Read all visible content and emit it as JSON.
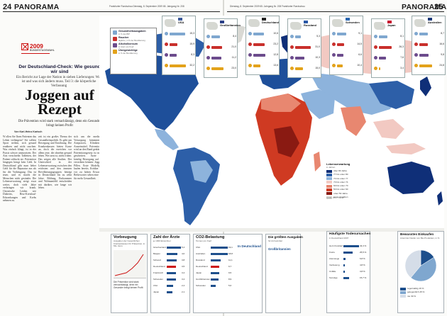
{
  "header": {
    "left_page": "24",
    "left_section": "PANORAMA",
    "left_dateline": "Frankfurter Rundschau   Dienstag, 8. September 2009   65. Jahrgang   Nr. 208",
    "right_page": "25",
    "right_section": "PANORAMA",
    "right_dateline": "Dienstag, 8. September 2009   65. Jahrgang   Nr. 208   Frankfurter Rundschau"
  },
  "logo": {
    "year": "2009",
    "sub": "BUNDESTAGSWAHL"
  },
  "article": {
    "kicker": "Der Deutschland-Check: Wie gesund wir sind",
    "subkicker": "Ein Bericht zur Lage der Nation in sieben Lieferungen: Was ist und was sich ändern muss. Teil 3: die körperliche Verfassung",
    "headline": "Joggen auf Rezept",
    "deck": "Die Prävention wird stark vernachlässigt, denn ein Gesunder bringt keinen Profit",
    "byline": "Von Karl-Heinz Karisch",
    "col1": "W ollen Sie Ihren Patienten das Leben verlängern? Sie sollten Sport treiben, sich gesund ernähren und nicht rauchen. Was einfach klingt, ist in der Praxis schwer umzusetzen. Der Arzt verschreibt Tabletten, der Patient schluckt sie. Prävention hingegen bringt kein Geld. In Deutschland gibt man lieber Geld für die Reparatur aus als für die Vorbeugung. Das ist teuer, und es macht die Menschen nicht gesünder. Die Lebenserwartung steigt zwar weiter, doch viele Jahre verbringen wir krank. Chronische Leiden wie Diabetes, Herz-Kreislauf-Erkrankungen und Krebs nehmen zu.",
    "col2": "zeit ist ein großes Thema der Gesundheitspolitik. Es geht um Bewegung und Ernährung. Die Krankenkassen bieten Kurse an, doch die erreichen vor allem jene, die ohnehin gesund leben. Wer arm ist, stirbt früher. Das zeigen alle Studien. Der Unterschied in der Lebenserwartung zwischen den reichsten und den ärmsten Bevölkerungsgruppen beträgt in Deutschland bis zu zehn Jahre. Bildung, Einkommen und Wohnumfeld entscheiden mit darüber, wie lange wir leben.",
    "col3": "sich um die medizinische Versorgung kümmern, um Arztpraxen, Kliniken und Arzneimittel. Prävention aber wird an den Rand gedrängt. Ein Präventionsgesetz ist mehrfach gescheitert. Ärzte sollen künftig Bewegung auf Rezept verordnen können: Joggen statt Pillen. Erste Modellprojekte laufen bereits. Kritiker warnen vor zu hohen Erwartungen, Befürworter sehen eine Chance für mehr Gesundheit."
  },
  "map": {
    "legend": [
      {
        "label": "Gesundheitsausgaben",
        "sub": "in % des BIP",
        "color": "#7fa7cf"
      },
      {
        "label": "Raucher",
        "sub": "tägliche, in % der Bevölkerung",
        "color": "#c9302c"
      },
      {
        "label": "Alkoholkonsum",
        "sub": "in Litern pro Kopf",
        "color": "#6c4b8c"
      },
      {
        "label": "Übergewichtige",
        "sub": "in % der Bevölkerung",
        "color": "#e3a21a"
      }
    ],
    "countries": [
      {
        "name": "USA",
        "flag": "#3c5a9a",
        "values": [
          "15,3",
          "15,9",
          "8,3",
          "32,2"
        ],
        "bars": [
          0.92,
          0.45,
          0.42,
          0.95
        ]
      },
      {
        "name": "Großbritannien",
        "flag": "#2a3f86",
        "values": [
          "8,4",
          "21,0",
          "11,2",
          "23,0"
        ],
        "bars": [
          0.5,
          0.62,
          0.6,
          0.7
        ]
      },
      {
        "name": "Deutschland",
        "flag": "#222222",
        "values": [
          "10,6",
          "23,2",
          "12,8",
          "13,6"
        ],
        "bars": [
          0.64,
          0.68,
          0.7,
          0.42
        ]
      },
      {
        "name": "Russland",
        "flag": "#2b58a6",
        "values": [
          "5,3",
          "31,0",
          "10,3",
          "15,0"
        ],
        "bars": [
          0.32,
          0.9,
          0.56,
          0.45
        ]
      },
      {
        "name": "Schweden",
        "flag": "#2a66b0",
        "values": [
          "9,1",
          "14,5",
          "6,6",
          "10,4"
        ],
        "bars": [
          0.55,
          0.42,
          0.36,
          0.32
        ]
      },
      {
        "name": "Japan",
        "flag": "#c8102e",
        "values": [
          "8,1",
          "26,3",
          "7,6",
          "3,4"
        ],
        "bars": [
          0.49,
          0.77,
          0.41,
          0.1
        ]
      },
      {
        "name": "Australien",
        "flag": "#1d3a7a",
        "values": [
          "8,7",
          "16,6",
          "9,8",
          "24,8"
        ],
        "bars": [
          0.52,
          0.48,
          0.53,
          0.75
        ]
      }
    ],
    "life_expectancy": {
      "title": "Lebenserwartung",
      "sub": "in Jahren",
      "classes": [
        {
          "label": "über 80 Jahre",
          "color": "#0f2f78"
        },
        {
          "label": "77 bis unter 80",
          "color": "#2d5fa8"
        },
        {
          "label": "74 bis unter 77",
          "color": "#8db3dc"
        },
        {
          "label": "70 bis unter 74",
          "color": "#f2c9c2"
        },
        {
          "label": "60 bis unter 70",
          "color": "#e88770"
        },
        {
          "label": "50 bis unter 60",
          "color": "#cf3a22"
        },
        {
          "label": "unter 50 Jahre",
          "color": "#8a1a12"
        },
        {
          "label": "keine Angaben",
          "color": "#d9d9d4"
        }
      ],
      "source": "Quelle: WHO, OECD"
    }
  },
  "boxes": {
    "vorbeugung": {
      "title": "Vorbeugung",
      "sub": "Ausgaben der Gesetzlichen Krankenkassen für Prävention, in Mio. Euro"
    },
    "aerzte": {
      "title": "Zahl der Ärzte",
      "sub": "je 1000 Einwohner",
      "rows": [
        {
          "label": "Griechenland",
          "value": "5,4"
        },
        {
          "label": "Belgien",
          "value": "4,0"
        },
        {
          "label": "Schweiz",
          "value": "3,8"
        },
        {
          "label": "Deutschland",
          "value": "3,5"
        },
        {
          "label": "Frankreich",
          "value": "3,4"
        },
        {
          "label": "Schweden",
          "value": "3,4"
        },
        {
          "label": "USA",
          "value": "2,4"
        },
        {
          "label": "Japan",
          "value": "2,1"
        }
      ]
    },
    "co2": {
      "title": "CO2-Belastung",
      "sub": "Tonnen pro Kopf",
      "big": "In Deutschland",
      "rows": [
        {
          "label": "USA",
          "value": "19,1"
        },
        {
          "label": "Australien",
          "value": "18,8"
        },
        {
          "label": "Russland",
          "value": "11,1"
        },
        {
          "label": "Deutschland",
          "value": "9,7"
        },
        {
          "label": "Japan",
          "value": "9,5"
        },
        {
          "label": "Großbritannien",
          "value": "8,9"
        },
        {
          "label": "Schweden",
          "value": "5,6"
        }
      ]
    },
    "arzneimittel": {
      "title": "Die größten Ausgaben",
      "sub": "für Arzneimittel",
      "big": "Großbritannien"
    },
    "todesursachen": {
      "title": "Häufigste Todesursachen",
      "sub": "in Deutschland 2007",
      "rows": [
        {
          "label": "Herz-Kreislauf",
          "value": "43,4 %"
        },
        {
          "label": "Krebs",
          "value": "25,5 %"
        },
        {
          "label": "Atemwege",
          "value": "6,8 %"
        },
        {
          "label": "Verdauung",
          "value": "4,8 %"
        },
        {
          "label": "Unfälle",
          "value": "3,8 %"
        },
        {
          "label": "Sonstige",
          "value": "15,7 %"
        }
      ]
    },
    "einkaufen": {
      "title": "Bewusstes Einkaufen",
      "sub": "Anteil der Käufer von Bio-Produkten, in %",
      "pie": [
        {
          "label": "regelmäßig",
          "value": 16,
          "color": "#1d4f8c"
        },
        {
          "label": "gelegentlich",
          "value": 45,
          "color": "#7fa7cf"
        },
        {
          "label": "nie",
          "value": 39,
          "color": "#d5dde8"
        }
      ]
    }
  }
}
